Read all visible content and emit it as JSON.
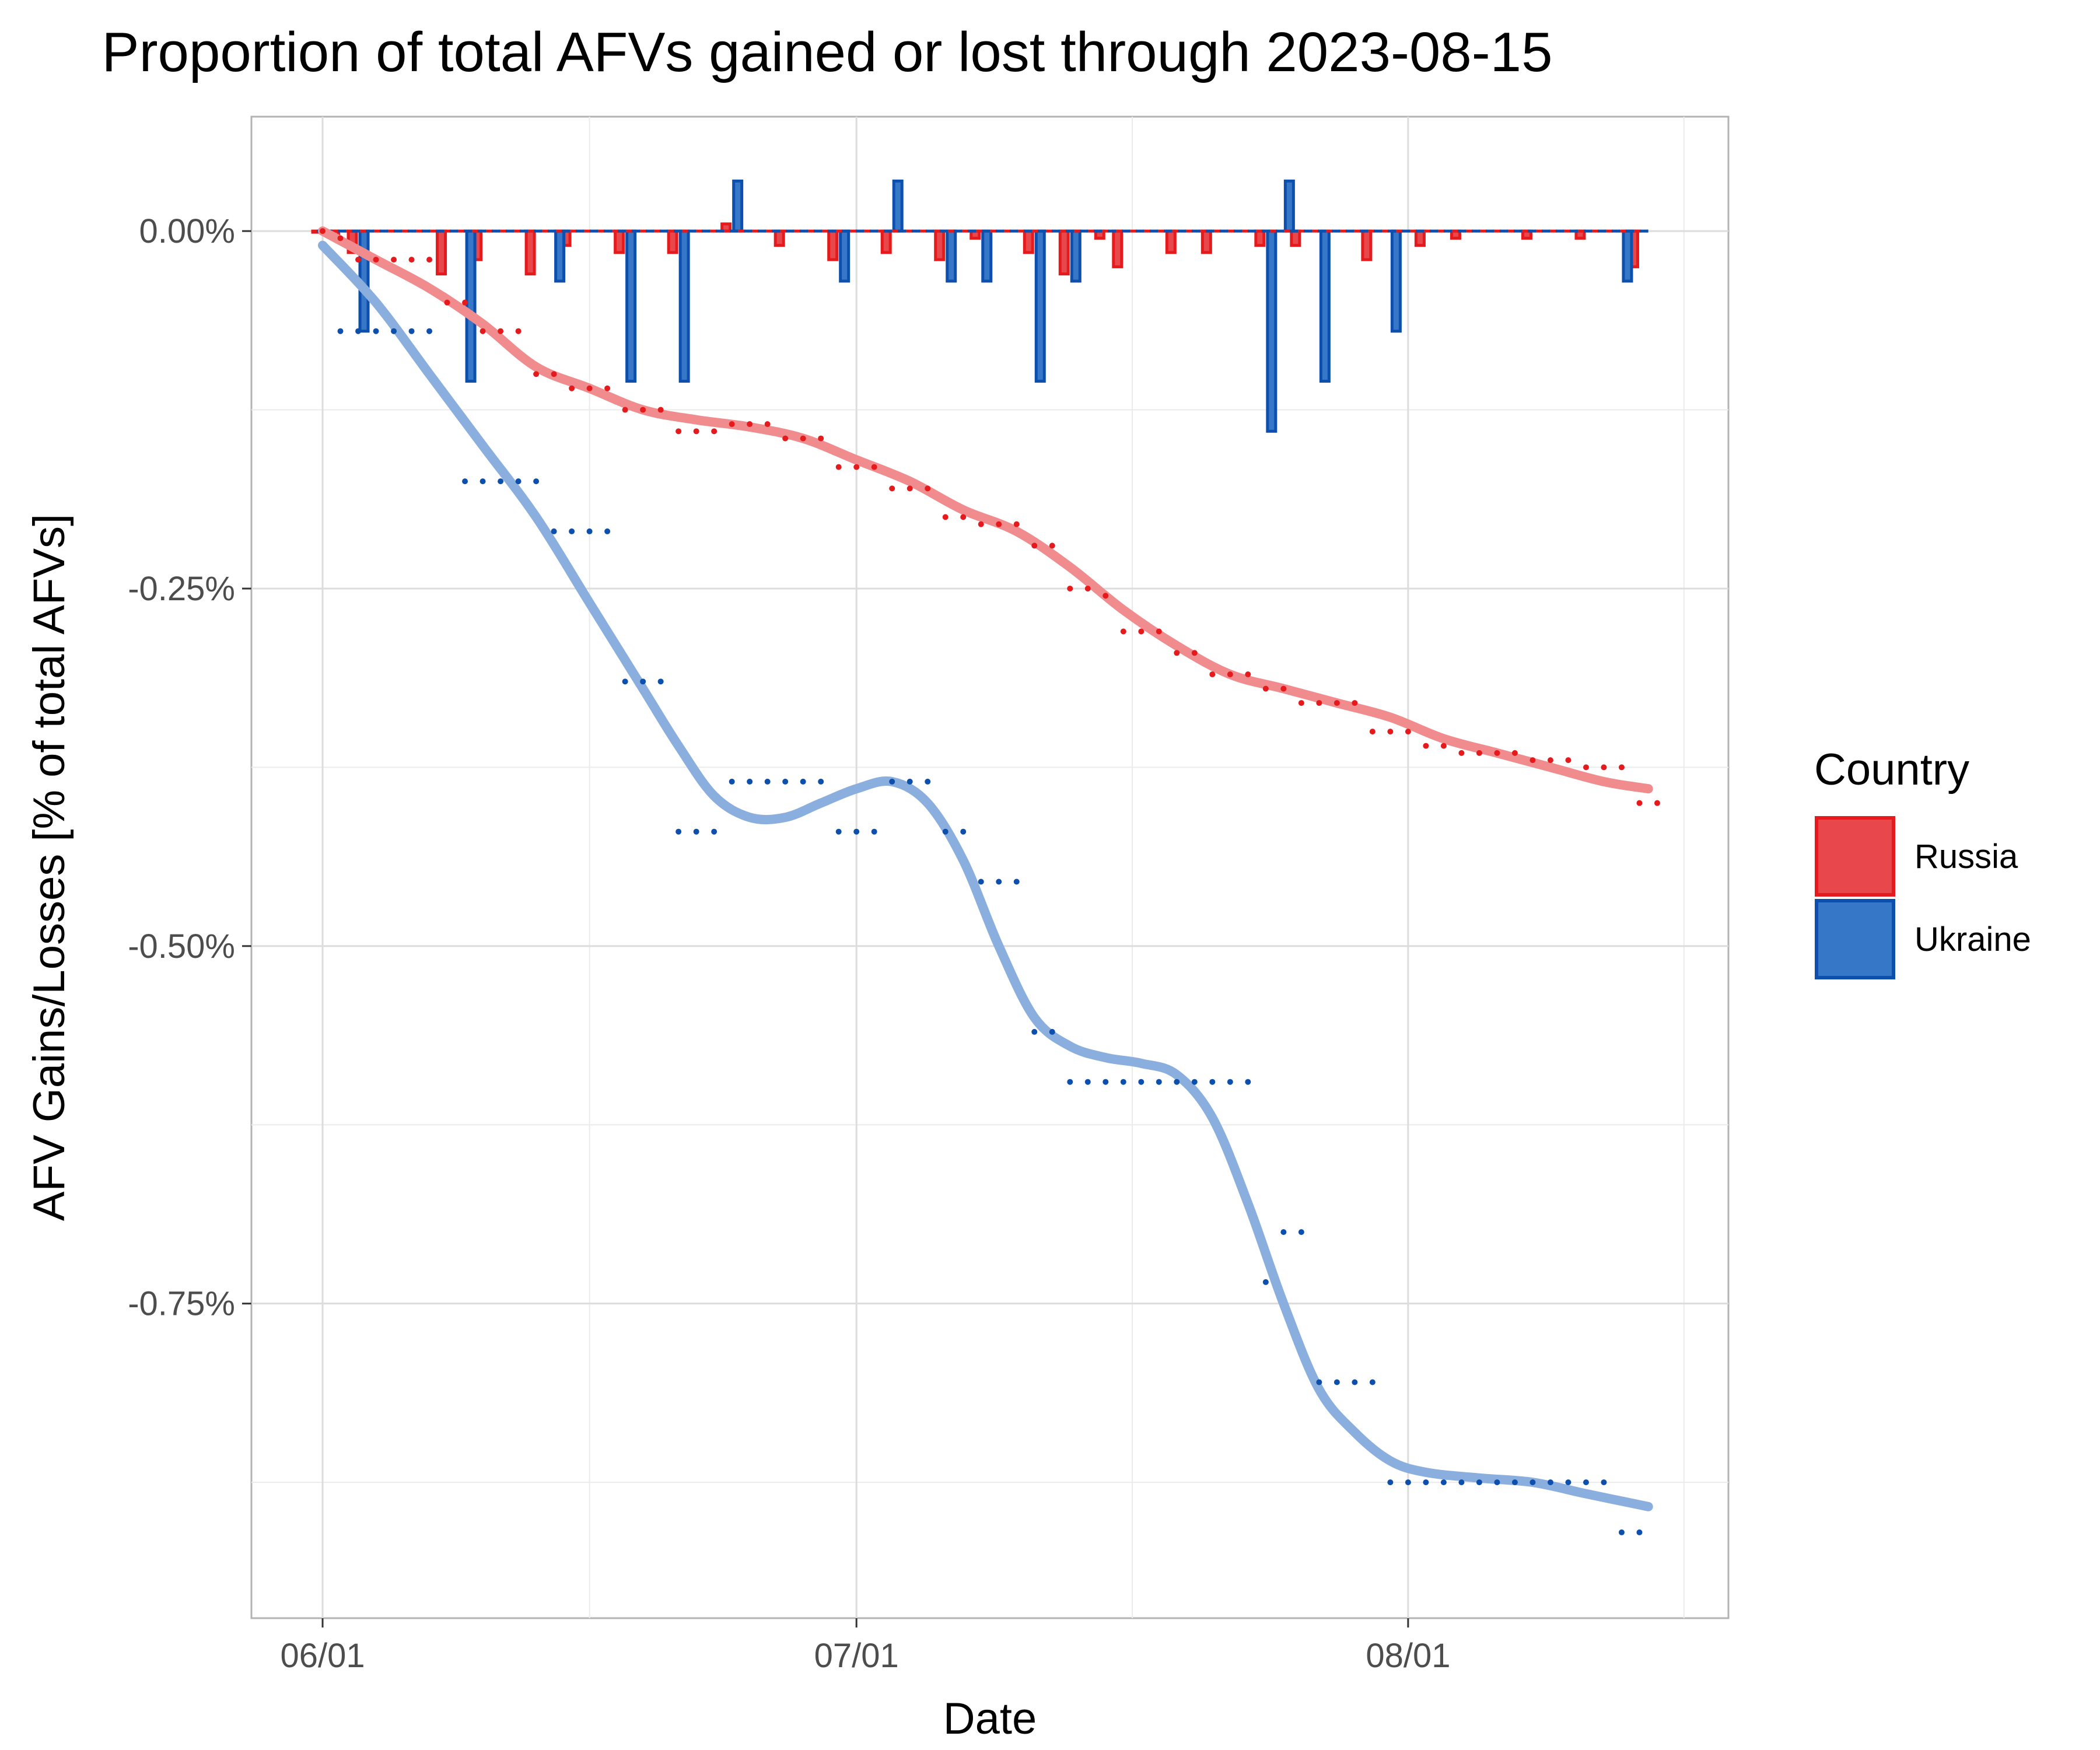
{
  "chart_data": {
    "type": "bar+line",
    "title": "Proportion of total AFVs gained or lost through 2023-08-15",
    "xlabel": "Date",
    "ylabel": "AFV Gains/Losses [% of total AFVs]",
    "x_ticks": [
      {
        "label": "06/01",
        "day": 0
      },
      {
        "label": "07/01",
        "day": 30
      },
      {
        "label": "08/01",
        "day": 61
      }
    ],
    "y_ticks": [
      {
        "label": "0.00%",
        "value": 0
      },
      {
        "label": "-0.25%",
        "value": -0.25
      },
      {
        "label": "-0.50%",
        "value": -0.5
      },
      {
        "label": "-0.75%",
        "value": -0.75
      }
    ],
    "xlim_days": [
      -4,
      79
    ],
    "ylim": [
      -0.97,
      0.08
    ],
    "legend": {
      "title": "Country",
      "position": "right"
    },
    "series": [
      {
        "name": "Russia",
        "color": "#e41a1c",
        "fill": "#e8484b",
        "smooth_color": "#f08c8e",
        "daily_bars": [
          [
            0,
            0
          ],
          [
            1,
            -0.005
          ],
          [
            2,
            -0.015
          ],
          [
            7,
            -0.03
          ],
          [
            9,
            -0.02
          ],
          [
            12,
            -0.03
          ],
          [
            14,
            -0.01
          ],
          [
            17,
            -0.015
          ],
          [
            20,
            -0.015
          ],
          [
            23,
            0.005
          ],
          [
            26,
            -0.01
          ],
          [
            29,
            -0.02
          ],
          [
            32,
            -0.015
          ],
          [
            35,
            -0.02
          ],
          [
            37,
            -0.005
          ],
          [
            40,
            -0.015
          ],
          [
            42,
            -0.03
          ],
          [
            44,
            -0.005
          ],
          [
            45,
            -0.025
          ],
          [
            48,
            -0.015
          ],
          [
            50,
            -0.015
          ],
          [
            53,
            -0.01
          ],
          [
            55,
            -0.01
          ],
          [
            59,
            -0.02
          ],
          [
            62,
            -0.01
          ],
          [
            64,
            -0.005
          ],
          [
            68,
            -0.005
          ],
          [
            71,
            -0.005
          ],
          [
            74,
            -0.025
          ]
        ],
        "cumulative": [
          [
            0,
            0
          ],
          [
            1,
            -0.005
          ],
          [
            2,
            -0.02
          ],
          [
            3,
            -0.02
          ],
          [
            4,
            -0.02
          ],
          [
            5,
            -0.02
          ],
          [
            6,
            -0.02
          ],
          [
            7,
            -0.05
          ],
          [
            8,
            -0.05
          ],
          [
            9,
            -0.07
          ],
          [
            10,
            -0.07
          ],
          [
            11,
            -0.07
          ],
          [
            12,
            -0.1
          ],
          [
            13,
            -0.1
          ],
          [
            14,
            -0.11
          ],
          [
            15,
            -0.11
          ],
          [
            16,
            -0.11
          ],
          [
            17,
            -0.125
          ],
          [
            18,
            -0.125
          ],
          [
            19,
            -0.125
          ],
          [
            20,
            -0.14
          ],
          [
            21,
            -0.14
          ],
          [
            22,
            -0.14
          ],
          [
            23,
            -0.135
          ],
          [
            24,
            -0.135
          ],
          [
            25,
            -0.135
          ],
          [
            26,
            -0.145
          ],
          [
            27,
            -0.145
          ],
          [
            28,
            -0.145
          ],
          [
            29,
            -0.165
          ],
          [
            30,
            -0.165
          ],
          [
            31,
            -0.165
          ],
          [
            32,
            -0.18
          ],
          [
            33,
            -0.18
          ],
          [
            34,
            -0.18
          ],
          [
            35,
            -0.2
          ],
          [
            36,
            -0.2
          ],
          [
            37,
            -0.205
          ],
          [
            38,
            -0.205
          ],
          [
            39,
            -0.205
          ],
          [
            40,
            -0.22
          ],
          [
            41,
            -0.22
          ],
          [
            42,
            -0.25
          ],
          [
            43,
            -0.25
          ],
          [
            44,
            -0.255
          ],
          [
            45,
            -0.28
          ],
          [
            46,
            -0.28
          ],
          [
            47,
            -0.28
          ],
          [
            48,
            -0.295
          ],
          [
            49,
            -0.295
          ],
          [
            50,
            -0.31
          ],
          [
            51,
            -0.31
          ],
          [
            52,
            -0.31
          ],
          [
            53,
            -0.32
          ],
          [
            54,
            -0.32
          ],
          [
            55,
            -0.33
          ],
          [
            56,
            -0.33
          ],
          [
            57,
            -0.33
          ],
          [
            58,
            -0.33
          ],
          [
            59,
            -0.35
          ],
          [
            60,
            -0.35
          ],
          [
            61,
            -0.35
          ],
          [
            62,
            -0.36
          ],
          [
            63,
            -0.36
          ],
          [
            64,
            -0.365
          ],
          [
            65,
            -0.365
          ],
          [
            66,
            -0.365
          ],
          [
            67,
            -0.365
          ],
          [
            68,
            -0.37
          ],
          [
            69,
            -0.37
          ],
          [
            70,
            -0.37
          ],
          [
            71,
            -0.375
          ],
          [
            72,
            -0.375
          ],
          [
            73,
            -0.375
          ],
          [
            74,
            -0.4
          ],
          [
            75,
            -0.4
          ]
        ],
        "smooth": [
          [
            0,
            0
          ],
          [
            3,
            -0.02
          ],
          [
            6,
            -0.04
          ],
          [
            9,
            -0.065
          ],
          [
            12,
            -0.095
          ],
          [
            15,
            -0.11
          ],
          [
            18,
            -0.125
          ],
          [
            21,
            -0.132
          ],
          [
            24,
            -0.137
          ],
          [
            27,
            -0.145
          ],
          [
            30,
            -0.16
          ],
          [
            33,
            -0.175
          ],
          [
            36,
            -0.195
          ],
          [
            39,
            -0.21
          ],
          [
            42,
            -0.235
          ],
          [
            45,
            -0.265
          ],
          [
            48,
            -0.29
          ],
          [
            51,
            -0.31
          ],
          [
            54,
            -0.32
          ],
          [
            57,
            -0.33
          ],
          [
            60,
            -0.34
          ],
          [
            63,
            -0.355
          ],
          [
            66,
            -0.365
          ],
          [
            69,
            -0.375
          ],
          [
            72,
            -0.385
          ],
          [
            74.5,
            -0.39
          ]
        ]
      },
      {
        "name": "Ukraine",
        "color": "#0d4fad",
        "fill": "#3777c8",
        "smooth_color": "#8aaede",
        "daily_bars": [
          [
            2,
            -0.07
          ],
          [
            8,
            -0.105
          ],
          [
            13,
            -0.035
          ],
          [
            17,
            -0.105
          ],
          [
            20,
            -0.105
          ],
          [
            23,
            0.035
          ],
          [
            29,
            -0.035
          ],
          [
            32,
            0.035
          ],
          [
            35,
            -0.035
          ],
          [
            37,
            -0.035
          ],
          [
            40,
            -0.105
          ],
          [
            42,
            -0.035
          ],
          [
            53,
            -0.14
          ],
          [
            54,
            0.035
          ],
          [
            56,
            -0.105
          ],
          [
            60,
            -0.07
          ],
          [
            73,
            -0.035
          ]
        ],
        "cumulative": [
          [
            1,
            -0.07
          ],
          [
            2,
            -0.07
          ],
          [
            3,
            -0.07
          ],
          [
            4,
            -0.07
          ],
          [
            5,
            -0.07
          ],
          [
            6,
            -0.07
          ],
          [
            8,
            -0.175
          ],
          [
            9,
            -0.175
          ],
          [
            10,
            -0.175
          ],
          [
            11,
            -0.175
          ],
          [
            12,
            -0.175
          ],
          [
            13,
            -0.21
          ],
          [
            14,
            -0.21
          ],
          [
            15,
            -0.21
          ],
          [
            16,
            -0.21
          ],
          [
            17,
            -0.315
          ],
          [
            18,
            -0.315
          ],
          [
            19,
            -0.315
          ],
          [
            20,
            -0.42
          ],
          [
            21,
            -0.42
          ],
          [
            22,
            -0.42
          ],
          [
            23,
            -0.385
          ],
          [
            24,
            -0.385
          ],
          [
            25,
            -0.385
          ],
          [
            26,
            -0.385
          ],
          [
            27,
            -0.385
          ],
          [
            28,
            -0.385
          ],
          [
            29,
            -0.42
          ],
          [
            30,
            -0.42
          ],
          [
            31,
            -0.42
          ],
          [
            32,
            -0.385
          ],
          [
            33,
            -0.385
          ],
          [
            34,
            -0.385
          ],
          [
            35,
            -0.42
          ],
          [
            36,
            -0.42
          ],
          [
            37,
            -0.455
          ],
          [
            38,
            -0.455
          ],
          [
            39,
            -0.455
          ],
          [
            40,
            -0.56
          ],
          [
            41,
            -0.56
          ],
          [
            42,
            -0.595
          ],
          [
            43,
            -0.595
          ],
          [
            44,
            -0.595
          ],
          [
            45,
            -0.595
          ],
          [
            46,
            -0.595
          ],
          [
            47,
            -0.595
          ],
          [
            48,
            -0.595
          ],
          [
            49,
            -0.595
          ],
          [
            50,
            -0.595
          ],
          [
            51,
            -0.595
          ],
          [
            52,
            -0.595
          ],
          [
            53,
            -0.735
          ],
          [
            54,
            -0.7
          ],
          [
            55,
            -0.7
          ],
          [
            56,
            -0.805
          ],
          [
            57,
            -0.805
          ],
          [
            58,
            -0.805
          ],
          [
            59,
            -0.805
          ],
          [
            60,
            -0.875
          ],
          [
            61,
            -0.875
          ],
          [
            62,
            -0.875
          ],
          [
            63,
            -0.875
          ],
          [
            64,
            -0.875
          ],
          [
            65,
            -0.875
          ],
          [
            66,
            -0.875
          ],
          [
            67,
            -0.875
          ],
          [
            68,
            -0.875
          ],
          [
            69,
            -0.875
          ],
          [
            70,
            -0.875
          ],
          [
            71,
            -0.875
          ],
          [
            72,
            -0.875
          ],
          [
            73,
            -0.91
          ],
          [
            74,
            -0.91
          ]
        ],
        "smooth": [
          [
            0,
            -0.01
          ],
          [
            3,
            -0.05
          ],
          [
            6,
            -0.1
          ],
          [
            9,
            -0.15
          ],
          [
            12,
            -0.2
          ],
          [
            15,
            -0.26
          ],
          [
            18,
            -0.32
          ],
          [
            20,
            -0.36
          ],
          [
            22,
            -0.395
          ],
          [
            24,
            -0.41
          ],
          [
            26,
            -0.41
          ],
          [
            28,
            -0.4
          ],
          [
            30,
            -0.39
          ],
          [
            32,
            -0.385
          ],
          [
            34,
            -0.4
          ],
          [
            36,
            -0.44
          ],
          [
            38,
            -0.5
          ],
          [
            40,
            -0.55
          ],
          [
            42,
            -0.57
          ],
          [
            44,
            -0.578
          ],
          [
            46,
            -0.582
          ],
          [
            48,
            -0.59
          ],
          [
            50,
            -0.62
          ],
          [
            52,
            -0.68
          ],
          [
            54,
            -0.75
          ],
          [
            56,
            -0.81
          ],
          [
            58,
            -0.84
          ],
          [
            60,
            -0.86
          ],
          [
            62,
            -0.868
          ],
          [
            65,
            -0.872
          ],
          [
            68,
            -0.875
          ],
          [
            71,
            -0.883
          ],
          [
            74.5,
            -0.892
          ]
        ]
      }
    ]
  }
}
